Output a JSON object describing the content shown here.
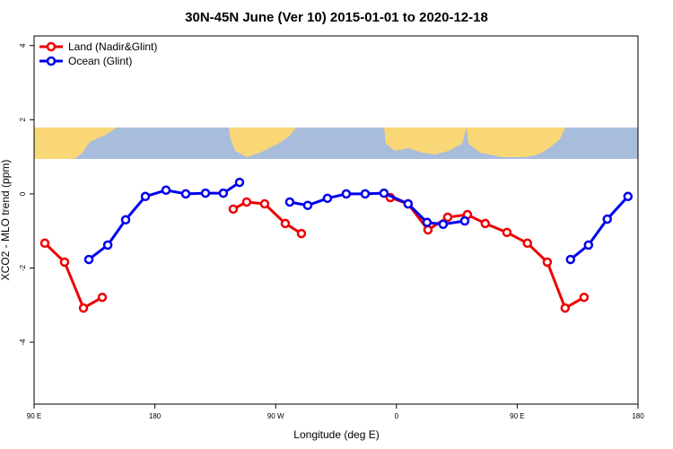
{
  "chart_data": {
    "type": "line",
    "title": "30N-45N June (Ver 10)   2015-01-01 to 2020-12-18",
    "x_label": "Longitude (deg E)",
    "y_label": "XCO2 - MLO trend (ppm)",
    "xlim": [
      90,
      540
    ],
    "ylim": [
      -5.67,
      4.26
    ],
    "xticks": [
      {
        "value": 90,
        "label": "90 E"
      },
      180,
      {
        "value": 270,
        "label": "90 W"
      },
      {
        "value": 360,
        "label": "0"
      },
      {
        "value": 450,
        "label": "90 E"
      },
      {
        "value": 540,
        "label": "180"
      }
    ],
    "yticks": [
      -4,
      -2,
      0,
      2,
      4
    ],
    "legend": "top-left",
    "series": [
      {
        "name": "Land (Nadir&Glint)",
        "color": "#ee0000",
        "x": [
          98,
          112.7,
          126.8,
          140.8,
          null,
          238.4,
          248.4,
          261.8,
          277.2,
          289.2,
          null,
          355.4,
          368.7,
          383.5,
          398.2,
          412.9,
          426.2,
          442.3,
          457.6,
          472.4,
          485.7,
          499.8
        ],
        "values": [
          -1.33,
          -1.84,
          -3.08,
          -2.79,
          null,
          -0.41,
          -0.22,
          -0.27,
          -0.8,
          -1.07,
          null,
          -0.1,
          -0.27,
          -0.97,
          -0.63,
          -0.56,
          -0.8,
          -1.04,
          -1.33,
          -1.84,
          -3.08,
          -2.79
        ]
      },
      {
        "name": "Ocean (Glint)",
        "color": "#0000ee",
        "x": [
          130.8,
          144.9,
          158.2,
          172.9,
          188.3,
          203,
          217.7,
          231,
          243.1,
          null,
          280.5,
          293.9,
          308.6,
          322.6,
          336.7,
          350.7,
          368.7,
          382.8,
          394.8,
          410.9,
          null,
          489.7,
          503.1,
          517.1,
          532.5
        ],
        "values": [
          -1.77,
          -1.38,
          -0.7,
          -0.07,
          0.1,
          0,
          0.02,
          0.02,
          0.31,
          null,
          -0.22,
          -0.31,
          -0.12,
          0,
          0,
          0.02,
          -0.27,
          -0.77,
          -0.82,
          -0.73,
          null,
          -1.77,
          -1.38,
          -0.68,
          -0.07
        ]
      }
    ]
  }
}
